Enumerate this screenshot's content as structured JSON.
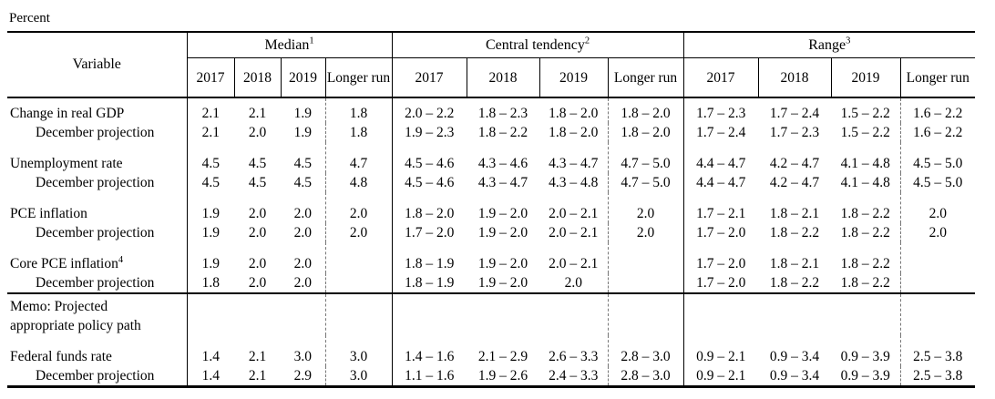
{
  "caption": "Percent",
  "table": {
    "variable_header": "Variable",
    "col_groups": [
      {
        "label": "Median",
        "sup": "1"
      },
      {
        "label": "Central tendency",
        "sup": "2"
      },
      {
        "label": "Range",
        "sup": "3"
      }
    ],
    "years": [
      "2017",
      "2018",
      "2019",
      "Longer run"
    ],
    "rows": [
      {
        "label": "Change in real GDP",
        "sup": "",
        "indent": false,
        "first": true,
        "median": [
          "2.1",
          "2.1",
          "1.9",
          "1.8"
        ],
        "central_tendency": [
          "2.0 – 2.2",
          "1.8 – 2.3",
          "1.8 – 2.0",
          "1.8 – 2.0"
        ],
        "range": [
          "1.7 – 2.3",
          "1.7 – 2.4",
          "1.5 – 2.2",
          "1.6 – 2.2"
        ]
      },
      {
        "label": "December projection",
        "sup": "",
        "indent": true,
        "median": [
          "2.1",
          "2.0",
          "1.9",
          "1.8"
        ],
        "central_tendency": [
          "1.9 – 2.3",
          "1.8 – 2.2",
          "1.8 – 2.0",
          "1.8 – 2.0"
        ],
        "range": [
          "1.7 – 2.4",
          "1.7 – 2.3",
          "1.5 – 2.2",
          "1.6 – 2.2"
        ]
      },
      {
        "label": "Unemployment rate",
        "sup": "",
        "indent": false,
        "spaced": true,
        "median": [
          "4.5",
          "4.5",
          "4.5",
          "4.7"
        ],
        "central_tendency": [
          "4.5 – 4.6",
          "4.3 – 4.6",
          "4.3 – 4.7",
          "4.7 – 5.0"
        ],
        "range": [
          "4.4 – 4.7",
          "4.2 – 4.7",
          "4.1 – 4.8",
          "4.5 – 5.0"
        ]
      },
      {
        "label": "December projection",
        "sup": "",
        "indent": true,
        "median": [
          "4.5",
          "4.5",
          "4.5",
          "4.8"
        ],
        "central_tendency": [
          "4.5 – 4.6",
          "4.3 – 4.7",
          "4.3 – 4.8",
          "4.7 – 5.0"
        ],
        "range": [
          "4.4 – 4.7",
          "4.2 – 4.7",
          "4.1 – 4.8",
          "4.5 – 5.0"
        ]
      },
      {
        "label": "PCE inflation",
        "sup": "",
        "indent": false,
        "spaced": true,
        "median": [
          "1.9",
          "2.0",
          "2.0",
          "2.0"
        ],
        "central_tendency": [
          "1.8 – 2.0",
          "1.9 – 2.0",
          "2.0 – 2.1",
          "2.0"
        ],
        "range": [
          "1.7 – 2.1",
          "1.8 – 2.1",
          "1.8 – 2.2",
          "2.0"
        ]
      },
      {
        "label": "December projection",
        "sup": "",
        "indent": true,
        "median": [
          "1.9",
          "2.0",
          "2.0",
          "2.0"
        ],
        "central_tendency": [
          "1.7 – 2.0",
          "1.9 – 2.0",
          "2.0 – 2.1",
          "2.0"
        ],
        "range": [
          "1.7 – 2.0",
          "1.8 – 2.2",
          "1.8 – 2.2",
          "2.0"
        ]
      },
      {
        "label": "Core PCE inflation",
        "sup": "4",
        "indent": false,
        "spaced": true,
        "median": [
          "1.9",
          "2.0",
          "2.0",
          ""
        ],
        "central_tendency": [
          "1.8 – 1.9",
          "1.9 – 2.0",
          "2.0 – 2.1",
          ""
        ],
        "range": [
          "1.7 – 2.0",
          "1.8 – 2.1",
          "1.8 – 2.2",
          ""
        ]
      },
      {
        "label": "December projection",
        "sup": "",
        "indent": true,
        "median": [
          "1.8",
          "2.0",
          "2.0",
          ""
        ],
        "central_tendency": [
          "1.8 – 1.9",
          "1.9 – 2.0",
          "2.0",
          ""
        ],
        "range": [
          "1.7 – 2.0",
          "1.8 – 2.2",
          "1.8 – 2.2",
          ""
        ]
      },
      {
        "label": "Memo: Projected\nappropriate policy path",
        "sup": "",
        "indent": false,
        "section_start": true,
        "multiline": true,
        "median": [
          "",
          "",
          "",
          ""
        ],
        "central_tendency": [
          "",
          "",
          "",
          ""
        ],
        "range": [
          "",
          "",
          "",
          ""
        ]
      },
      {
        "label": "Federal funds rate",
        "sup": "",
        "indent": false,
        "spaced": true,
        "median": [
          "1.4",
          "2.1",
          "3.0",
          "3.0"
        ],
        "central_tendency": [
          "1.4 – 1.6",
          "2.1 – 2.9",
          "2.6 – 3.3",
          "2.8 – 3.0"
        ],
        "range": [
          "0.9 – 2.1",
          "0.9 – 3.4",
          "0.9 – 3.9",
          "2.5 – 3.8"
        ]
      },
      {
        "label": "December projection",
        "sup": "",
        "indent": true,
        "median": [
          "1.4",
          "2.1",
          "2.9",
          "3.0"
        ],
        "central_tendency": [
          "1.1 – 1.6",
          "1.9 – 2.6",
          "2.4 – 3.3",
          "2.8 – 3.0"
        ],
        "range": [
          "0.9 – 2.1",
          "0.9 – 3.4",
          "0.9 – 3.9",
          "2.5 – 3.8"
        ]
      }
    ]
  }
}
